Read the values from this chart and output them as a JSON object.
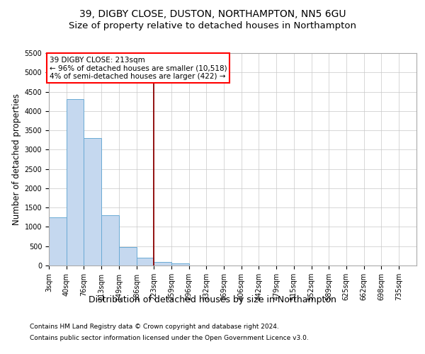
{
  "title_line1": "39, DIGBY CLOSE, DUSTON, NORTHAMPTON, NN5 6GU",
  "title_line2": "Size of property relative to detached houses in Northampton",
  "xlabel": "Distribution of detached houses by size in Northampton",
  "ylabel": "Number of detached properties",
  "footer_line1": "Contains HM Land Registry data © Crown copyright and database right 2024.",
  "footer_line2": "Contains public sector information licensed under the Open Government Licence v3.0.",
  "annotation_line1": "39 DIGBY CLOSE: 213sqm",
  "annotation_line2": "← 96% of detached houses are smaller (10,518)",
  "annotation_line3": "4% of semi-detached houses are larger (422) →",
  "bar_color": "#c5d8ef",
  "bar_edge_color": "#6aaad4",
  "red_line_color": "#8b0000",
  "categories": [
    "3sqm",
    "40sqm",
    "76sqm",
    "113sqm",
    "149sqm",
    "186sqm",
    "223sqm",
    "259sqm",
    "296sqm",
    "332sqm",
    "369sqm",
    "406sqm",
    "442sqm",
    "479sqm",
    "515sqm",
    "552sqm",
    "589sqm",
    "625sqm",
    "662sqm",
    "698sqm",
    "735sqm"
  ],
  "bin_edges": [
    3,
    40,
    76,
    113,
    149,
    186,
    223,
    259,
    296,
    332,
    369,
    406,
    442,
    479,
    515,
    552,
    589,
    625,
    662,
    698,
    735
  ],
  "values": [
    1250,
    4300,
    3300,
    1300,
    470,
    210,
    100,
    60,
    0,
    0,
    0,
    0,
    0,
    0,
    0,
    0,
    0,
    0,
    0,
    0
  ],
  "ylim": [
    0,
    5500
  ],
  "yticks": [
    0,
    500,
    1000,
    1500,
    2000,
    2500,
    3000,
    3500,
    4000,
    4500,
    5000,
    5500
  ],
  "grid_color": "#c8c8c8",
  "title_fontsize": 10,
  "subtitle_fontsize": 9.5,
  "ylabel_fontsize": 8.5,
  "xlabel_fontsize": 9,
  "tick_fontsize": 7,
  "footer_fontsize": 6.5,
  "annotation_fontsize": 7.5
}
